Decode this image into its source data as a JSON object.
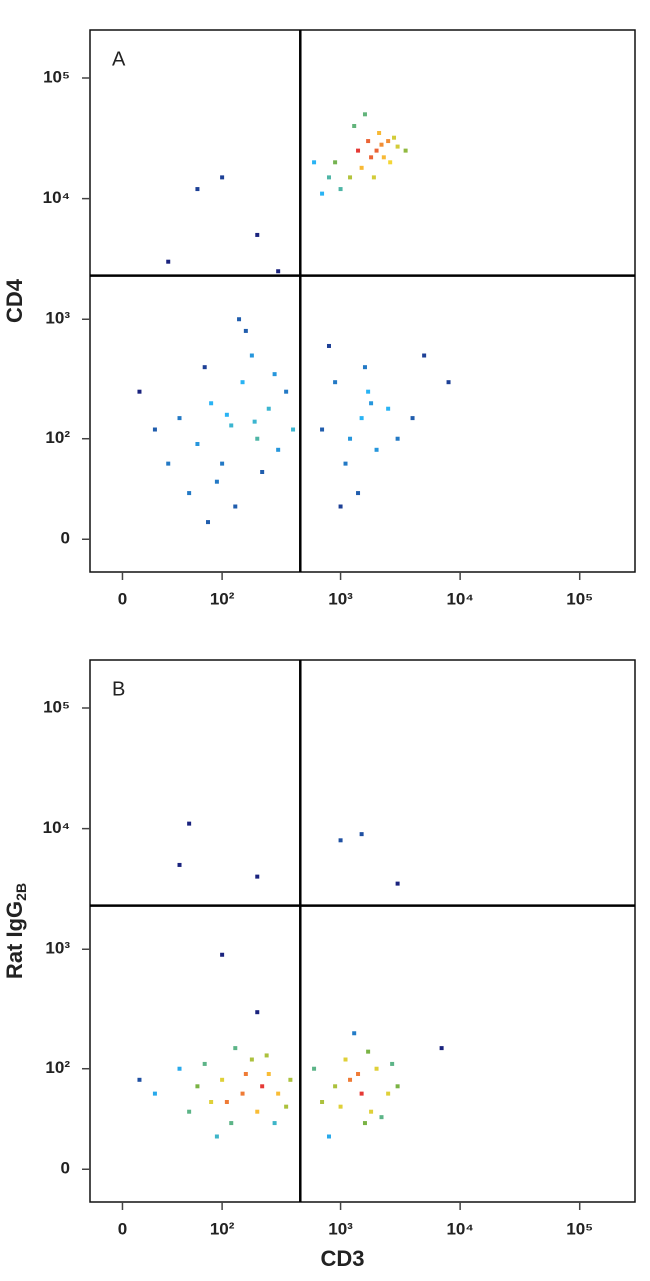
{
  "chart_data": [
    {
      "type": "scatter",
      "title": "A",
      "ylabel": "CD4",
      "xscale": "biexponential",
      "yscale": "biexponential",
      "color": "#1a237e",
      "xlim": [
        -20,
        290000
      ],
      "ylim": [
        -20,
        250000
      ],
      "xticks": [
        0,
        {
          "value": 100,
          "label": "10²"
        },
        {
          "value": 1000,
          "label": "10³"
        },
        {
          "value": 10000,
          "label": "10⁴"
        },
        {
          "value": 100000,
          "label": "10⁵"
        }
      ],
      "yticks": [
        0,
        {
          "value": 100,
          "label": "10²"
        },
        {
          "value": 1000,
          "label": "10³"
        },
        {
          "value": 10000,
          "label": "10⁴"
        },
        {
          "value": 100000,
          "label": "10⁵"
        }
      ],
      "gates": {
        "x": 460,
        "y": 2300
      },
      "x": [
        2000,
        2200,
        1800,
        2500,
        1500,
        1200,
        3000,
        2600,
        1700,
        900,
        1000,
        2100,
        2800,
        1400,
        800,
        600,
        3500,
        1900,
        1300,
        2300,
        700,
        1600,
        120,
        80,
        200,
        150,
        60,
        40,
        250,
        300,
        100,
        180,
        20,
        90,
        350,
        130,
        70,
        220,
        10,
        160,
        50,
        280,
        110,
        190,
        30,
        400,
        140,
        75,
        1500,
        1200,
        1800,
        900,
        2000,
        700,
        1600,
        1100,
        2500,
        1400,
        800,
        1700,
        1000,
        3000,
        60,
        30,
        200,
        5000,
        4000,
        300,
        100,
        8000
      ],
      "values": [
        25000,
        28000,
        22000,
        30000,
        18000,
        15000,
        27000,
        20000,
        30000,
        20000,
        12000,
        35000,
        32000,
        25000,
        15000,
        20000,
        25000,
        15000,
        40000,
        22000,
        11000,
        50000,
        130,
        200,
        100,
        300,
        90,
        150,
        180,
        80,
        60,
        500,
        120,
        40,
        250,
        20,
        400,
        50,
        250,
        800,
        30,
        350,
        160,
        140,
        60,
        120,
        1000,
        10,
        150,
        100,
        200,
        300,
        80,
        120,
        400,
        60,
        180,
        30,
        600,
        250,
        20,
        100,
        12000,
        3000,
        5000,
        500,
        150,
        2500,
        15000,
        300
      ]
    },
    {
      "type": "scatter",
      "title": "B",
      "ylabel": "Rat IgG",
      "ylabel_sub": "2B",
      "xlabel": "CD3",
      "xscale": "biexponential",
      "yscale": "biexponential",
      "color": "#1a237e",
      "xlim": [
        -20,
        290000
      ],
      "ylim": [
        -20,
        250000
      ],
      "xticks": [
        0,
        {
          "value": 100,
          "label": "10²"
        },
        {
          "value": 1000,
          "label": "10³"
        },
        {
          "value": 10000,
          "label": "10⁴"
        },
        {
          "value": 100000,
          "label": "10⁵"
        }
      ],
      "yticks": [
        0,
        {
          "value": 100,
          "label": "10²"
        },
        {
          "value": 1000,
          "label": "10³"
        },
        {
          "value": 10000,
          "label": "10⁴"
        },
        {
          "value": 100000,
          "label": "10⁵"
        }
      ],
      "gates": {
        "x": 460,
        "y": 2300
      },
      "x": [
        150,
        100,
        200,
        80,
        250,
        60,
        120,
        300,
        40,
        180,
        350,
        20,
        90,
        220,
        130,
        280,
        50,
        160,
        70,
        380,
        110,
        240,
        10,
        200,
        1500,
        1200,
        1800,
        900,
        2000,
        700,
        1600,
        1100,
        2500,
        1400,
        800,
        1700,
        1000,
        3000,
        2200,
        1300,
        600,
        2700,
        50,
        40,
        1000,
        1500,
        3000,
        200,
        7000,
        100
      ],
      "values": [
        60,
        80,
        40,
        50,
        90,
        70,
        30,
        60,
        100,
        120,
        45,
        60,
        20,
        70,
        150,
        30,
        40,
        90,
        110,
        80,
        50,
        130,
        80,
        300,
        60,
        80,
        40,
        70,
        100,
        50,
        30,
        120,
        60,
        90,
        20,
        140,
        45,
        70,
        35,
        200,
        100,
        110,
        11000,
        5000,
        8000,
        9000,
        3500,
        4000,
        150,
        900
      ]
    }
  ]
}
